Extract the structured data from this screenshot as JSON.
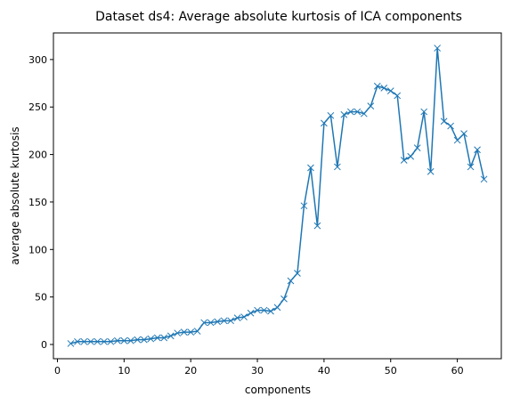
{
  "chart_data": {
    "type": "line",
    "title": "Dataset ds4: Average absolute kurtosis of ICA components",
    "xlabel": "components",
    "ylabel": "average absolute kurtosis",
    "xlim": [
      -0.6,
      66.6
    ],
    "ylim": [
      -15,
      328
    ],
    "x_ticks": [
      0,
      10,
      20,
      30,
      40,
      50,
      60
    ],
    "y_ticks": [
      0,
      50,
      100,
      150,
      200,
      250,
      300
    ],
    "grid": false,
    "legend": "none",
    "marker": "x",
    "line_color": "#1f77b4",
    "series": [
      {
        "x": [
          2,
          3,
          4,
          5,
          6,
          7,
          8,
          9,
          10,
          11,
          12,
          13,
          14,
          15,
          16,
          17,
          18,
          19,
          20,
          21,
          22,
          23,
          24,
          25,
          26,
          27,
          28,
          29,
          30,
          31,
          32,
          33,
          34,
          35,
          36,
          37,
          38,
          39,
          40,
          41,
          42,
          43,
          44,
          45,
          46,
          47,
          48,
          49,
          50,
          51,
          52,
          53,
          54,
          55,
          56,
          57,
          58,
          59,
          60,
          61,
          62,
          63,
          64
        ],
        "values": [
          1,
          3,
          3,
          3,
          3,
          3,
          3,
          4,
          4,
          4,
          5,
          5,
          6,
          7,
          7,
          9,
          12,
          13,
          13,
          14,
          23,
          23,
          24,
          25,
          25,
          28,
          29,
          33,
          36,
          36,
          35,
          39,
          48,
          67,
          75,
          146,
          186,
          125,
          233,
          241,
          187,
          242,
          245,
          245,
          243,
          251,
          272,
          270,
          267,
          262,
          194,
          198,
          207,
          245,
          182,
          312,
          235,
          230,
          215,
          222,
          187,
          205,
          174
        ]
      }
    ]
  }
}
